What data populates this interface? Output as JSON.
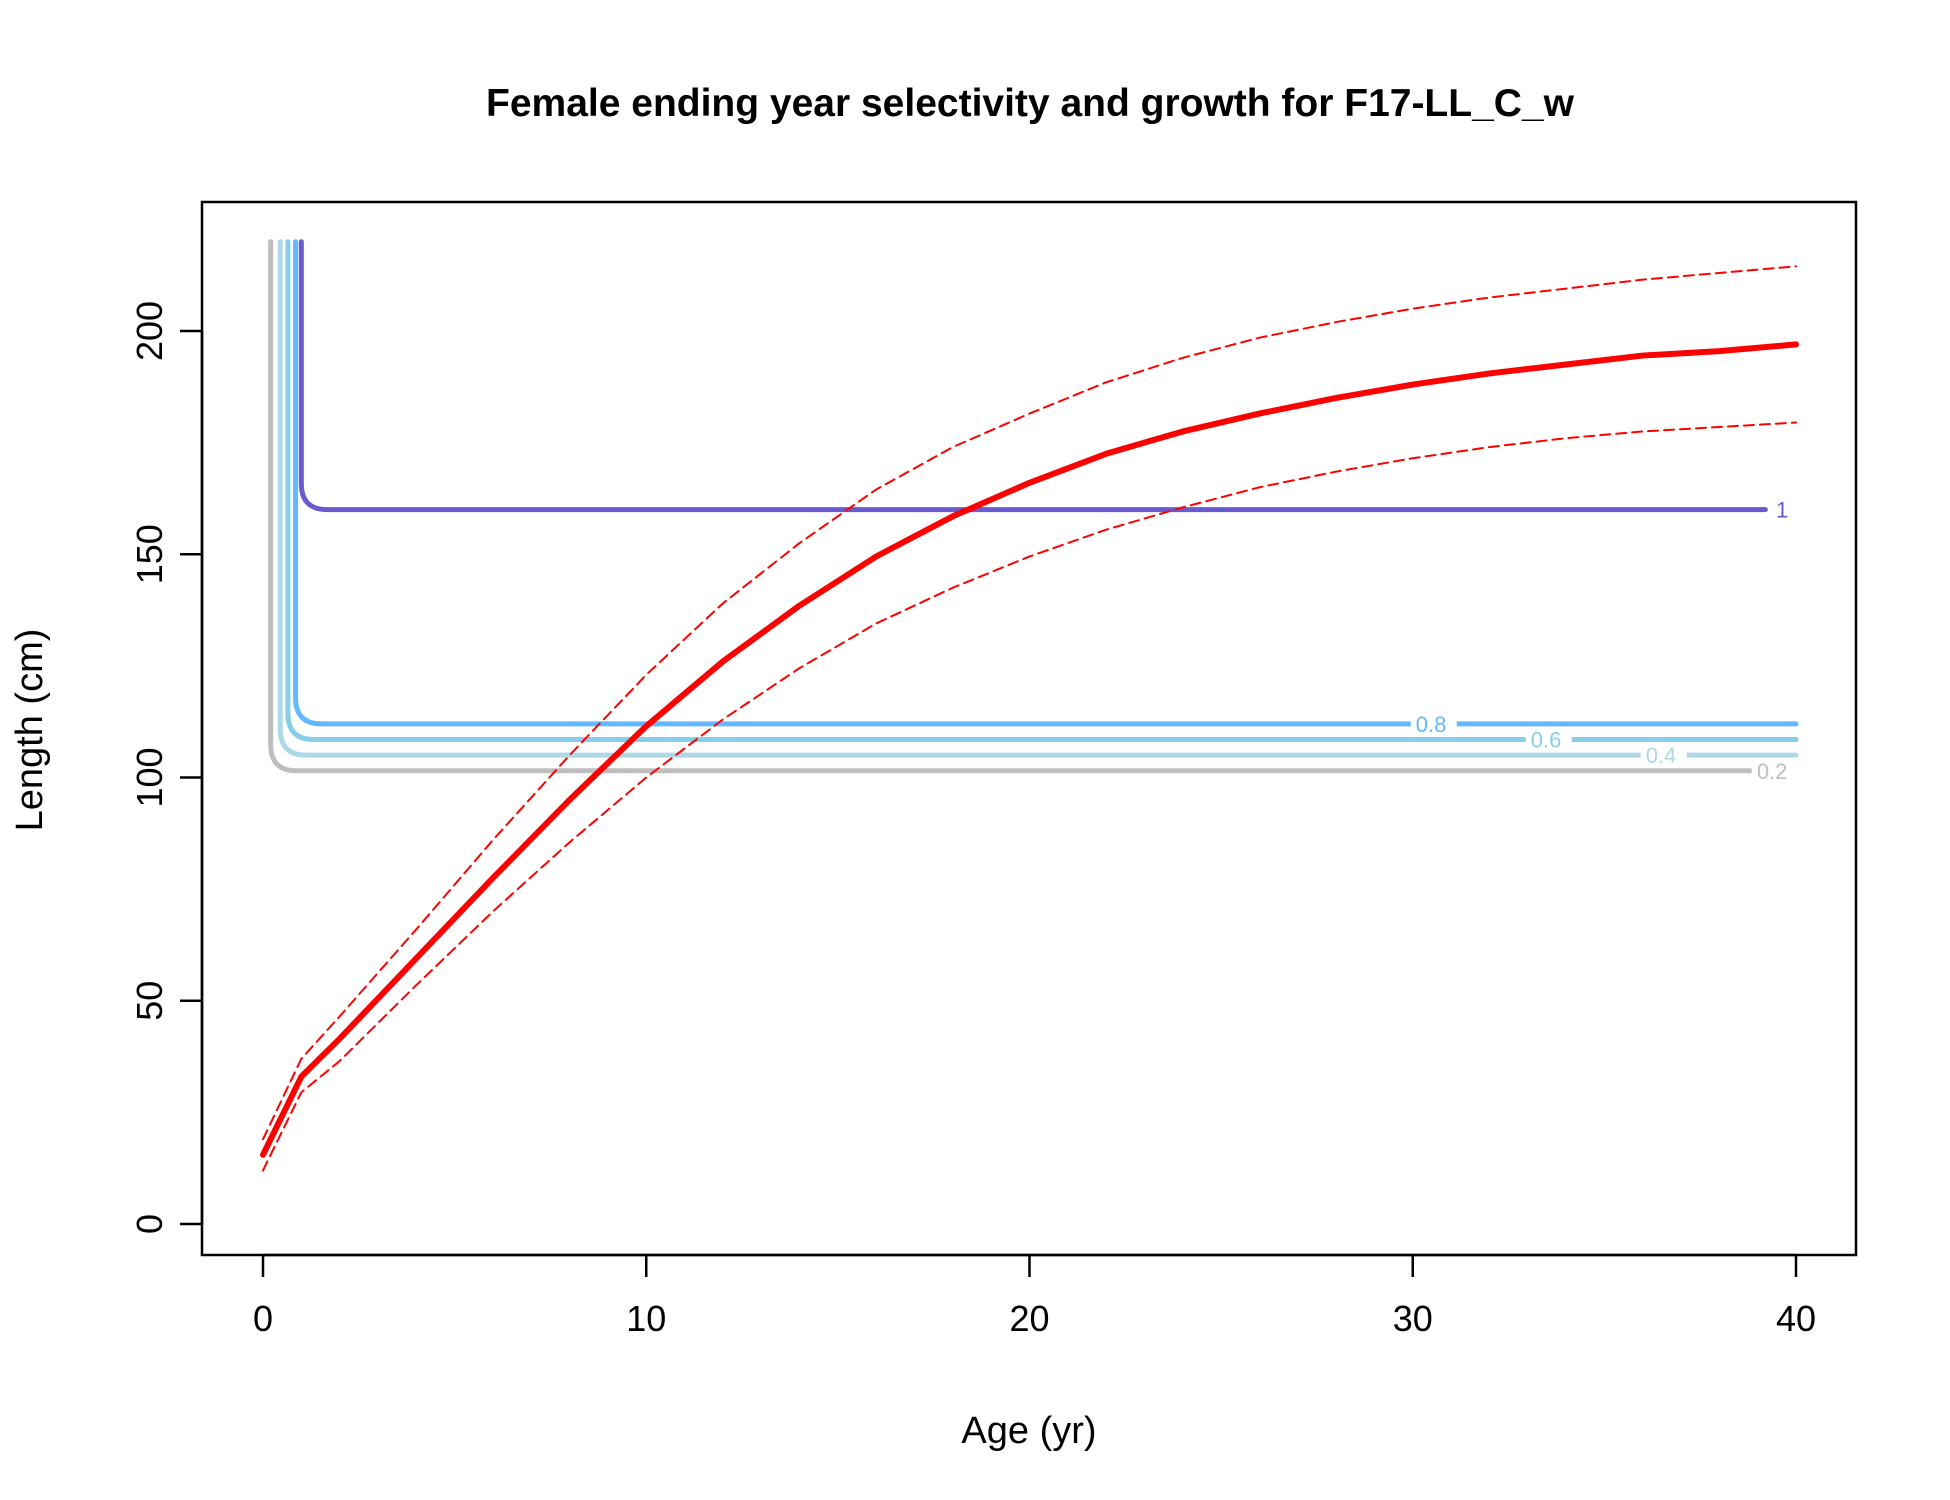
{
  "chart_data": {
    "type": "line",
    "title": "Female ending year selectivity and growth for F17-LL_C_w",
    "xlabel": "Age (yr)",
    "ylabel": "Length (cm)",
    "xlim": [
      0,
      40
    ],
    "ylim": [
      0,
      220
    ],
    "x_ticks": [
      0,
      10,
      20,
      30,
      40
    ],
    "y_ticks": [
      0,
      50,
      100,
      150,
      200
    ],
    "grid": false,
    "legend": "none",
    "contours": [
      {
        "level": "0.2",
        "color": "#bebebe",
        "vertical_x": 0.2,
        "horizontal_y": 101.5,
        "x_end": 38.8
      },
      {
        "level": "0.4",
        "color": "#add8e6",
        "vertical_x": 0.45,
        "horizontal_y": 105,
        "x_end": 40
      },
      {
        "level": "0.6",
        "color": "#87ceeb",
        "vertical_x": 0.65,
        "horizontal_y": 108.5,
        "x_end": 40
      },
      {
        "level": "0.8",
        "color": "#63b8ff",
        "vertical_x": 0.85,
        "horizontal_y": 112,
        "x_end": 40
      },
      {
        "level": "1",
        "color": "#6a5acd",
        "vertical_x": 1.0,
        "horizontal_y": 160,
        "x_end": 39.2
      }
    ],
    "contour_top_y": 220,
    "series": [
      {
        "style": "solid",
        "color": "#ff0000",
        "x": [
          0,
          1,
          2,
          4,
          6,
          8,
          10,
          12,
          14,
          16,
          18,
          20,
          22,
          24,
          26,
          28,
          30,
          32,
          34,
          36,
          38,
          40
        ],
        "y": [
          15.5,
          33,
          41.5,
          59.5,
          77.5,
          95,
          111.5,
          126,
          138.5,
          149.5,
          158.5,
          166,
          172.5,
          177.5,
          181.5,
          185,
          188,
          190.5,
          192.5,
          194.5,
          195.5,
          197
        ]
      },
      {
        "style": "dashed",
        "color": "#ff0000",
        "x": [
          0,
          1,
          2,
          4,
          6,
          8,
          10,
          12,
          14,
          16,
          18,
          20,
          22,
          24,
          26,
          28,
          30,
          32,
          34,
          36,
          38,
          40
        ],
        "y": [
          19,
          37,
          46.5,
          66,
          86,
          105,
          123,
          139,
          152.5,
          164.5,
          174,
          181.5,
          188.5,
          194,
          198.5,
          202,
          205,
          207.5,
          209.5,
          211.5,
          213,
          214.5
        ]
      },
      {
        "style": "dashed",
        "color": "#ff0000",
        "x": [
          0,
          1,
          2,
          4,
          6,
          8,
          10,
          12,
          14,
          16,
          18,
          20,
          22,
          24,
          26,
          28,
          30,
          32,
          34,
          36,
          38,
          40
        ],
        "y": [
          12,
          29.5,
          36.5,
          53.5,
          70,
          85.5,
          100,
          113,
          124.5,
          134.5,
          142.5,
          149.5,
          155.5,
          160.5,
          165,
          168.5,
          171.5,
          174,
          176,
          177.5,
          178.5,
          179.5
        ]
      }
    ]
  }
}
